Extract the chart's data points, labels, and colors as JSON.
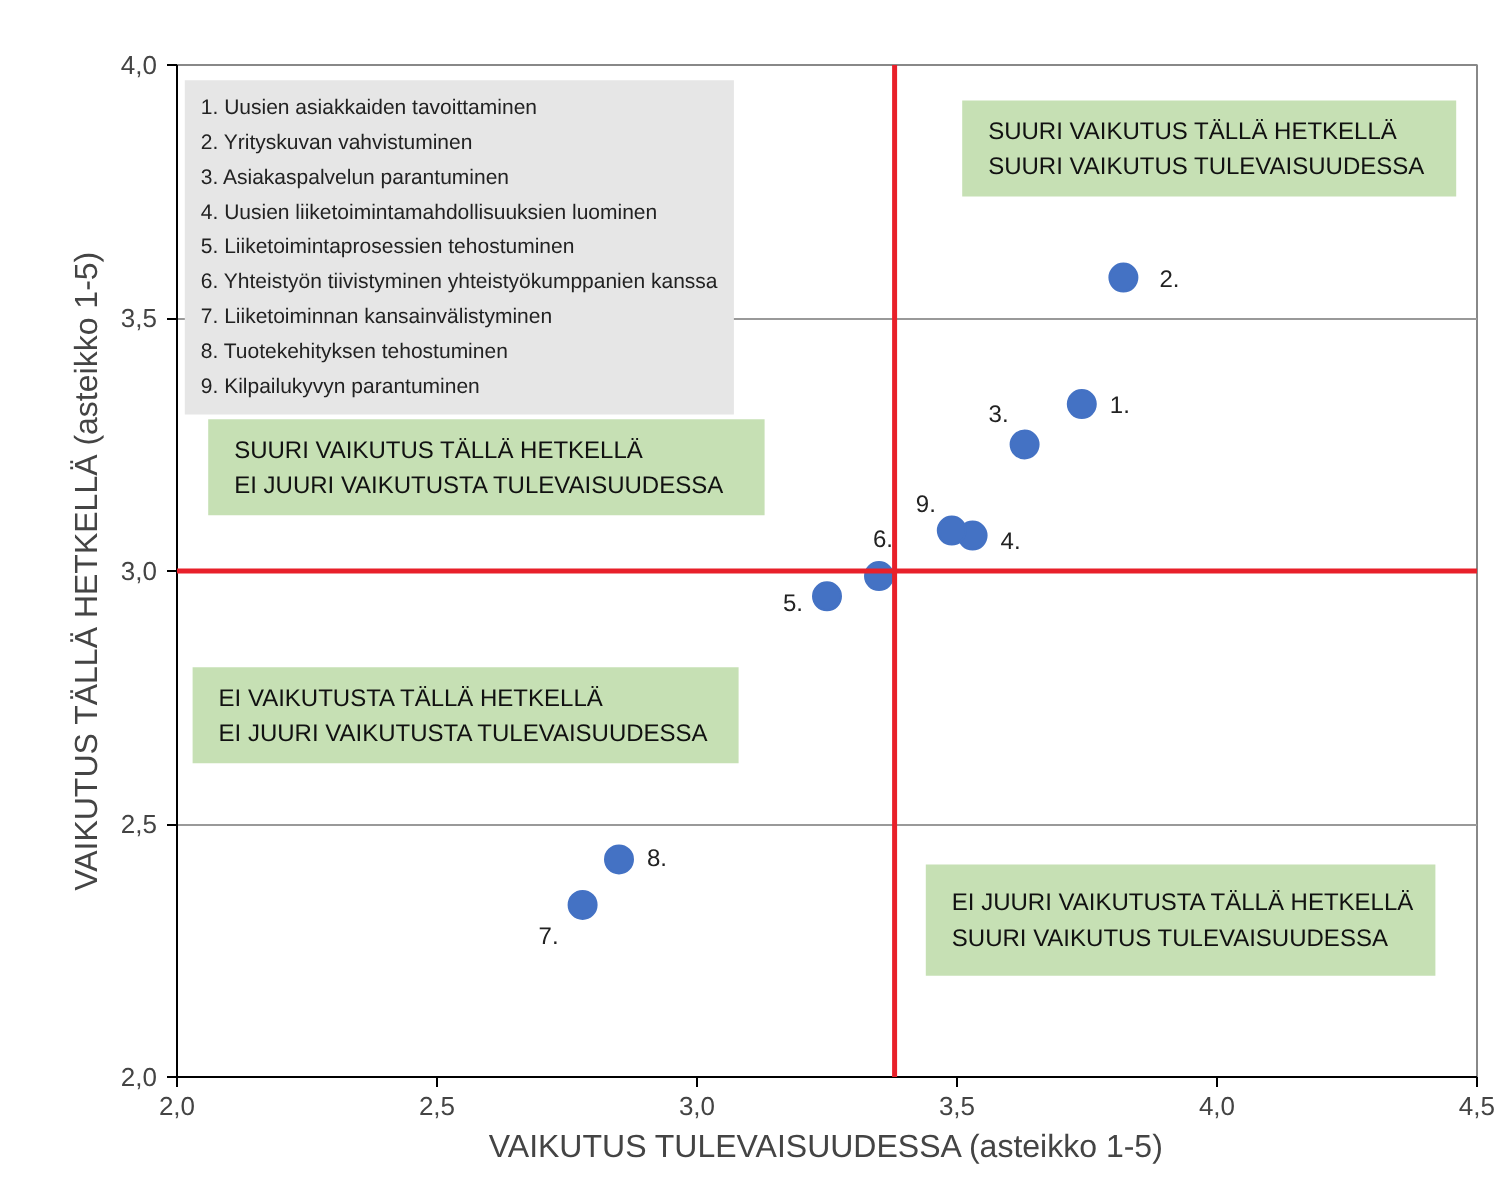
{
  "chart_data": {
    "type": "scatter",
    "xlabel": "VAIKUTUS TULEVAISUUDESSA (asteikko 1-5)",
    "ylabel": "VAIKUTUS TÄLLÄ HETKELLÄ (asteikko 1-5)",
    "x": [
      3.74,
      3.82,
      3.63,
      3.53,
      3.25,
      3.35,
      2.78,
      2.85,
      3.49
    ],
    "series": [
      {
        "color": "#4472c4",
        "values": [
          3.33,
          3.58,
          3.25,
          3.07,
          2.95,
          2.99,
          2.34,
          2.43,
          3.08
        ]
      }
    ],
    "marker": "circle",
    "xlim": [
      2.0,
      4.5
    ],
    "ylim": [
      2.0,
      4.0
    ],
    "xticks": [
      {
        "value": 2.0,
        "label": "2,0"
      },
      {
        "value": 2.5,
        "label": "2,5"
      },
      {
        "value": 3.0,
        "label": "3,0"
      },
      {
        "value": 3.5,
        "label": "3,5"
      },
      {
        "value": 4.0,
        "label": "4,0"
      },
      {
        "value": 4.5,
        "label": "4,5"
      }
    ],
    "yticks": [
      {
        "value": 2.0,
        "label": "2,0"
      },
      {
        "value": 2.5,
        "label": "2,5"
      },
      {
        "value": 3.0,
        "label": "3,0"
      },
      {
        "value": 3.5,
        "label": "3,5"
      },
      {
        "value": 4.0,
        "label": "4,0"
      }
    ],
    "grid": "y",
    "ref_lines": [
      {
        "axis": "x",
        "value": 3.38,
        "color": "#e8202a"
      },
      {
        "axis": "y",
        "value": 3.0,
        "color": "#e8202a"
      }
    ],
    "annotations": [
      "1. Uusien asiakkaiden tavoittaminen",
      "2. Yrityskuvan vahvistuminen",
      "3. Asiakaspalvelun parantuminen",
      "4. Uusien liiketoimintamahdollisuuksien luominen",
      "5. Liiketoimintaprosessien tehostuminen",
      "6. Yhteistyön tiivistyminen yhteistyökumppanien kanssa",
      "7. Liiketoiminnan kansainvälistyminen",
      "8. Tuotekehityksen tehostuminen",
      "9. Kilpailukyvyn parantuminen",
      "SUURI VAIKUTUS TÄLLÄ HETKELLÄ\nSUURI VAIKUTUS TULEVAISUUDESSA",
      "SUURI VAIKUTUS TÄLLÄ HETKELLÄ\nEI JUURI VAIKUTUSTA TULEVAISUUDESSA",
      "EI VAIKUTUSTA TÄLLÄ HETKELLÄ\nEI JUURI VAIKUTUSTA TULEVAISUUDESSA",
      "EI JUURI VAIKUTUSTA TÄLLÄ HETKELLÄ\nSUURI VAIKUTUS TULEVAISUUDESSA",
      {
        "text": "1.",
        "x": 3.74,
        "y": 3.33
      },
      {
        "text": "2.",
        "x": 3.82,
        "y": 3.58
      },
      {
        "text": "3.",
        "x": 3.63,
        "y": 3.25
      },
      {
        "text": "4.",
        "x": 3.53,
        "y": 3.07
      },
      {
        "text": "5.",
        "x": 3.25,
        "y": 2.95
      },
      {
        "text": "6.",
        "x": 3.35,
        "y": 2.99
      },
      {
        "text": "7.",
        "x": 2.78,
        "y": 2.34
      },
      {
        "text": "8.",
        "x": 2.85,
        "y": 2.43
      },
      {
        "text": "9.",
        "x": 3.49,
        "y": 3.08
      }
    ]
  }
}
